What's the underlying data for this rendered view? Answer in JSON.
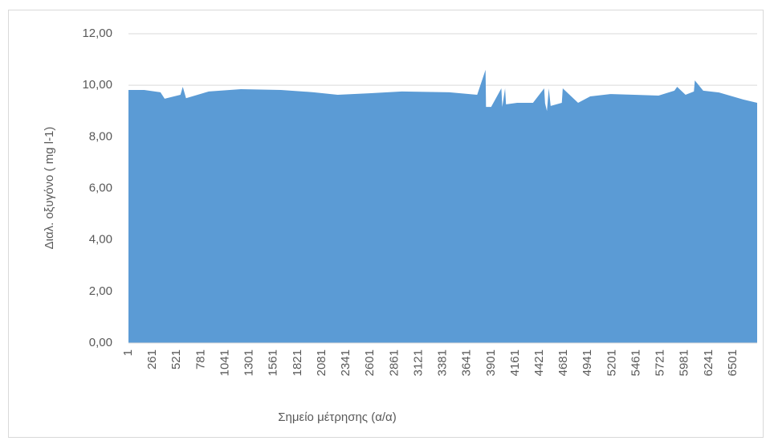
{
  "chart_data": {
    "type": "area",
    "x_label": "Σημείο μέτρησης (α/α)",
    "y_label": "Διαλ. οξυγόνο ( mg l-1)",
    "color": "#5b9bd5",
    "x": [
      1,
      170,
      345,
      390,
      560,
      585,
      620,
      865,
      1210,
      1640,
      1990,
      2250,
      2590,
      2940,
      3450,
      3750,
      3840,
      3845,
      3900,
      4010,
      4020,
      4050,
      4060,
      4180,
      4350,
      4470,
      4480,
      4500,
      4520,
      4540,
      4660,
      4670,
      4835,
      4965,
      5180,
      5440,
      5700,
      5870,
      5900,
      5990,
      6080,
      6090,
      6180,
      6350,
      6610,
      6760
    ],
    "values": [
      9.82,
      9.82,
      9.73,
      9.48,
      9.63,
      9.94,
      9.5,
      9.76,
      9.85,
      9.82,
      9.73,
      9.63,
      9.69,
      9.76,
      9.73,
      9.63,
      10.6,
      9.16,
      9.16,
      9.88,
      9.16,
      9.88,
      9.26,
      9.32,
      9.32,
      9.88,
      9.3,
      9.0,
      9.88,
      9.2,
      9.32,
      9.88,
      9.32,
      9.57,
      9.66,
      9.63,
      9.6,
      9.79,
      9.94,
      9.63,
      9.76,
      10.19,
      9.79,
      9.72,
      9.45,
      9.32
    ],
    "xlim": [
      1,
      6760
    ],
    "xticks": [
      1,
      261,
      521,
      781,
      1041,
      1301,
      1561,
      1821,
      2081,
      2341,
      2601,
      2861,
      3121,
      3381,
      3641,
      3901,
      4161,
      4421,
      4681,
      4941,
      5201,
      5461,
      5721,
      5981,
      6241,
      6501
    ],
    "ylim": [
      0,
      12
    ],
    "yticks": [
      {
        "value": 0,
        "label": "0,00"
      },
      {
        "value": 2,
        "label": "2,00"
      },
      {
        "value": 4,
        "label": "4,00"
      },
      {
        "value": 6,
        "label": "6,00"
      },
      {
        "value": 8,
        "label": "8,00"
      },
      {
        "value": 10,
        "label": "10,00"
      },
      {
        "value": 12,
        "label": "12,00"
      }
    ],
    "grid": true
  }
}
